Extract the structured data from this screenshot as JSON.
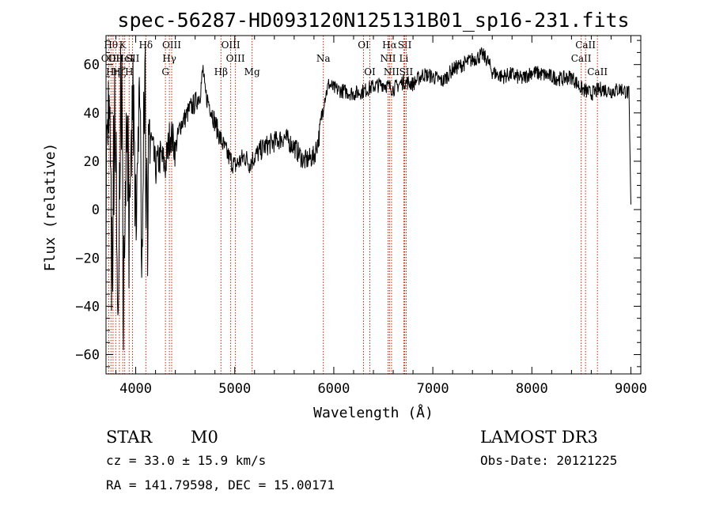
{
  "chart_data": {
    "type": "line",
    "title": "spec-56287-HD093120N125131B01_sp16-231.fits",
    "xlabel": "Wavelength (Å)",
    "ylabel": "Flux (relative)",
    "xlim": [
      3700,
      9100
    ],
    "ylim": [
      -68,
      72
    ],
    "xticks": [
      4000,
      5000,
      6000,
      7000,
      8000,
      9000
    ],
    "yticks": [
      -60,
      -40,
      -20,
      0,
      20,
      40,
      60
    ],
    "grid": false,
    "series": [
      {
        "style": "noisy",
        "points": [
          [
            3700,
            0
          ],
          [
            3730,
            55
          ],
          [
            3760,
            -38
          ],
          [
            3790,
            45
          ],
          [
            3820,
            -52
          ],
          [
            3850,
            58
          ],
          [
            3880,
            -30
          ],
          [
            3910,
            50
          ],
          [
            3940,
            -20
          ],
          [
            3970,
            48
          ],
          [
            4000,
            -5
          ],
          [
            4030,
            40
          ],
          [
            4060,
            5
          ],
          [
            4090,
            38
          ],
          [
            4120,
            12
          ],
          [
            4150,
            30
          ],
          [
            4200,
            17
          ],
          [
            4250,
            22
          ],
          [
            4300,
            18
          ],
          [
            4350,
            32
          ],
          [
            4400,
            25
          ],
          [
            4450,
            35
          ],
          [
            4500,
            38
          ],
          [
            4550,
            42
          ],
          [
            4600,
            44
          ],
          [
            4650,
            48
          ],
          [
            4680,
            58
          ],
          [
            4700,
            48
          ],
          [
            4750,
            43
          ],
          [
            4800,
            36
          ],
          [
            4850,
            30
          ],
          [
            4900,
            25
          ],
          [
            4950,
            21
          ],
          [
            5000,
            18
          ],
          [
            5050,
            20
          ],
          [
            5100,
            22
          ],
          [
            5150,
            19
          ],
          [
            5200,
            22
          ],
          [
            5300,
            26
          ],
          [
            5400,
            28
          ],
          [
            5500,
            30
          ],
          [
            5600,
            26
          ],
          [
            5700,
            20
          ],
          [
            5800,
            22
          ],
          [
            5850,
            30
          ],
          [
            5900,
            45
          ],
          [
            5950,
            52
          ],
          [
            6000,
            50
          ],
          [
            6100,
            49
          ],
          [
            6200,
            48
          ],
          [
            6300,
            49
          ],
          [
            6400,
            51
          ],
          [
            6500,
            52
          ],
          [
            6600,
            50
          ],
          [
            6700,
            53
          ],
          [
            6800,
            52
          ],
          [
            6900,
            56
          ],
          [
            7000,
            55
          ],
          [
            7100,
            53
          ],
          [
            7200,
            58
          ],
          [
            7300,
            60
          ],
          [
            7400,
            62
          ],
          [
            7500,
            64
          ],
          [
            7550,
            62
          ],
          [
            7600,
            57
          ],
          [
            7700,
            55
          ],
          [
            7800,
            56
          ],
          [
            7900,
            54
          ],
          [
            8000,
            57
          ],
          [
            8100,
            56
          ],
          [
            8200,
            55
          ],
          [
            8300,
            54
          ],
          [
            8400,
            55
          ],
          [
            8500,
            50
          ],
          [
            8600,
            48
          ],
          [
            8700,
            50
          ],
          [
            8800,
            49
          ],
          [
            8900,
            50
          ],
          [
            8980,
            48
          ],
          [
            9000,
            0
          ]
        ]
      }
    ],
    "line_markers": [
      {
        "wl": 3727,
        "label": "OII",
        "row": 2
      },
      {
        "wl": 3750,
        "label": "Hθ",
        "row": 1
      },
      {
        "wl": 3771,
        "label": "Hη",
        "row": 3
      },
      {
        "wl": 3798,
        "label": "OII",
        "row": 2
      },
      {
        "wl": 3835,
        "label": "Hζ",
        "row": 3
      },
      {
        "wl": 3869,
        "label": "K",
        "row": 1
      },
      {
        "wl": 3889,
        "label": "HeI",
        "row": 2
      },
      {
        "wl": 3934,
        "label": "H",
        "row": 3
      },
      {
        "wl": 3968,
        "label": "SII",
        "row": 2
      },
      {
        "wl": 4102,
        "label": "Hδ",
        "row": 1
      },
      {
        "wl": 4300,
        "label": "G",
        "row": 3
      },
      {
        "wl": 4340,
        "label": "Hγ",
        "row": 2
      },
      {
        "wl": 4363,
        "label": "OIII",
        "row": 1
      },
      {
        "wl": 4861,
        "label": "Hβ",
        "row": 3
      },
      {
        "wl": 4959,
        "label": "OIII",
        "row": 1
      },
      {
        "wl": 5007,
        "label": "OIII",
        "row": 2
      },
      {
        "wl": 5175,
        "label": "Mg",
        "row": 3
      },
      {
        "wl": 5894,
        "label": "Na",
        "row": 2
      },
      {
        "wl": 6300,
        "label": "OI",
        "row": 1
      },
      {
        "wl": 6364,
        "label": "OI",
        "row": 3
      },
      {
        "wl": 6548,
        "label": "NII",
        "row": 2
      },
      {
        "wl": 6563,
        "label": "Hα",
        "row": 1
      },
      {
        "wl": 6583,
        "label": "NII",
        "row": 3
      },
      {
        "wl": 6707,
        "label": "Li",
        "row": 2
      },
      {
        "wl": 6716,
        "label": "SII",
        "row": 1
      },
      {
        "wl": 6731,
        "label": "SII",
        "row": 3
      },
      {
        "wl": 8498,
        "label": "CaII",
        "row": 2
      },
      {
        "wl": 8542,
        "label": "CaII",
        "row": 1
      },
      {
        "wl": 8662,
        "label": "CaII",
        "row": 3
      }
    ]
  },
  "info": {
    "object_class": "STAR",
    "subclass": "M0",
    "survey": "LAMOST DR3",
    "cz": "cz = 33.0 ± 15.9 km/s",
    "obs_date": "Obs-Date: 20121225",
    "coords": "RA = 141.79598, DEC =  15.00171"
  },
  "colors": {
    "marker": "#cc2200",
    "ink": "#000000"
  }
}
